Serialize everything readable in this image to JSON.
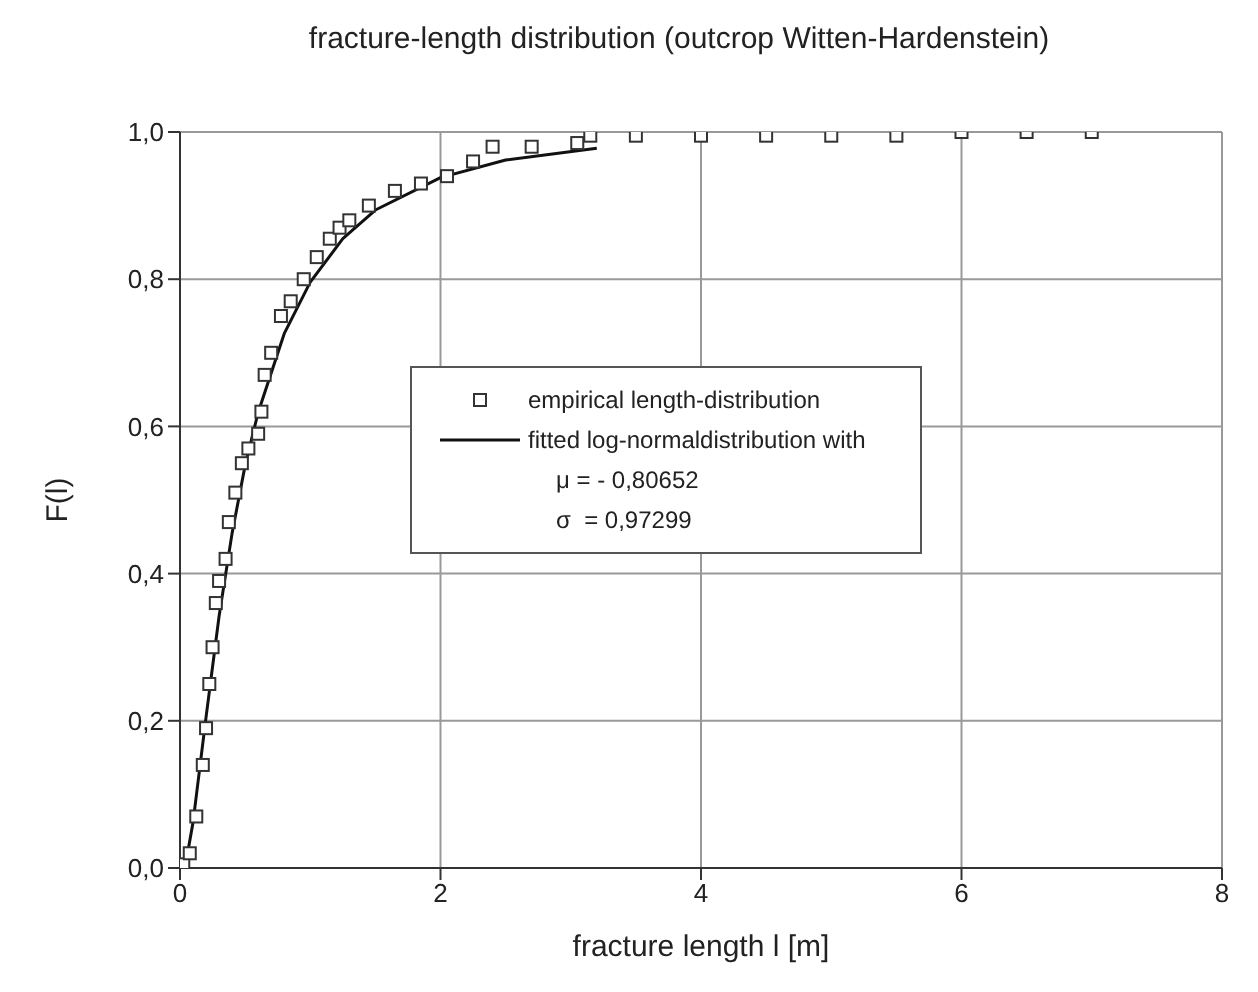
{
  "chart_data": {
    "type": "scatter",
    "title": "fracture-length distribution (outcrop Witten-Hardenstein)",
    "xlabel": "fracture length l [m]",
    "ylabel": "F(l)",
    "xlim": [
      0,
      8
    ],
    "xticks": [
      0,
      2,
      4,
      6,
      8
    ],
    "ylim": [
      0,
      1
    ],
    "yticks": [
      {
        "value": 0,
        "label": "0,0"
      },
      {
        "value": 0.2,
        "label": "0,2"
      },
      {
        "value": 0.4,
        "label": "0,4"
      },
      {
        "value": 0.6,
        "label": "0,6"
      },
      {
        "value": 0.8,
        "label": "0,8"
      },
      {
        "value": 1,
        "label": "1,0"
      }
    ],
    "grid": true,
    "legend": "right",
    "annotations": [
      "μ = - 0,80652",
      "σ  = 0,97299"
    ],
    "series": [
      {
        "name": "empirical length-distribution",
        "type": "scatter",
        "marker": "square",
        "color": "#333333",
        "x": [
          0.025,
          0.075,
          0.125,
          0.175,
          0.2,
          0.225,
          0.25,
          0.275,
          0.3,
          0.35,
          0.375,
          0.425,
          0.475,
          0.525,
          0.6,
          0.625,
          0.65,
          0.7,
          0.775,
          0.85,
          0.95,
          1.05,
          1.15,
          1.225,
          1.3,
          1.45,
          1.65,
          1.85,
          2.05,
          2.25,
          2.4,
          2.7,
          3.05,
          3.15,
          3.5,
          4.0,
          4.5,
          5.0,
          5.5,
          6.0,
          6.5,
          7.0
        ],
        "values": [
          0.005,
          0.02,
          0.07,
          0.14,
          0.19,
          0.25,
          0.3,
          0.36,
          0.39,
          0.42,
          0.47,
          0.51,
          0.55,
          0.57,
          0.59,
          0.62,
          0.67,
          0.7,
          0.75,
          0.77,
          0.8,
          0.83,
          0.855,
          0.87,
          0.88,
          0.9,
          0.92,
          0.93,
          0.94,
          0.96,
          0.98,
          0.98,
          0.985,
          0.995,
          0.995,
          0.995,
          0.995,
          0.995,
          0.995,
          1.0,
          1.0,
          1.0
        ]
      },
      {
        "name": "fitted log-normaldistribution with",
        "type": "line",
        "marker": "none",
        "line_style": "solid",
        "color": "#111111",
        "x": [
          0,
          0.05,
          0.1,
          0.2,
          0.3,
          0.4,
          0.5,
          0.6,
          0.8,
          1.0,
          1.25,
          1.5,
          2.0,
          2.5,
          3.2
        ],
        "values": [
          0,
          0.012,
          0.062,
          0.205,
          0.342,
          0.455,
          0.547,
          0.619,
          0.726,
          0.796,
          0.855,
          0.894,
          0.938,
          0.962,
          0.978
        ]
      }
    ]
  }
}
